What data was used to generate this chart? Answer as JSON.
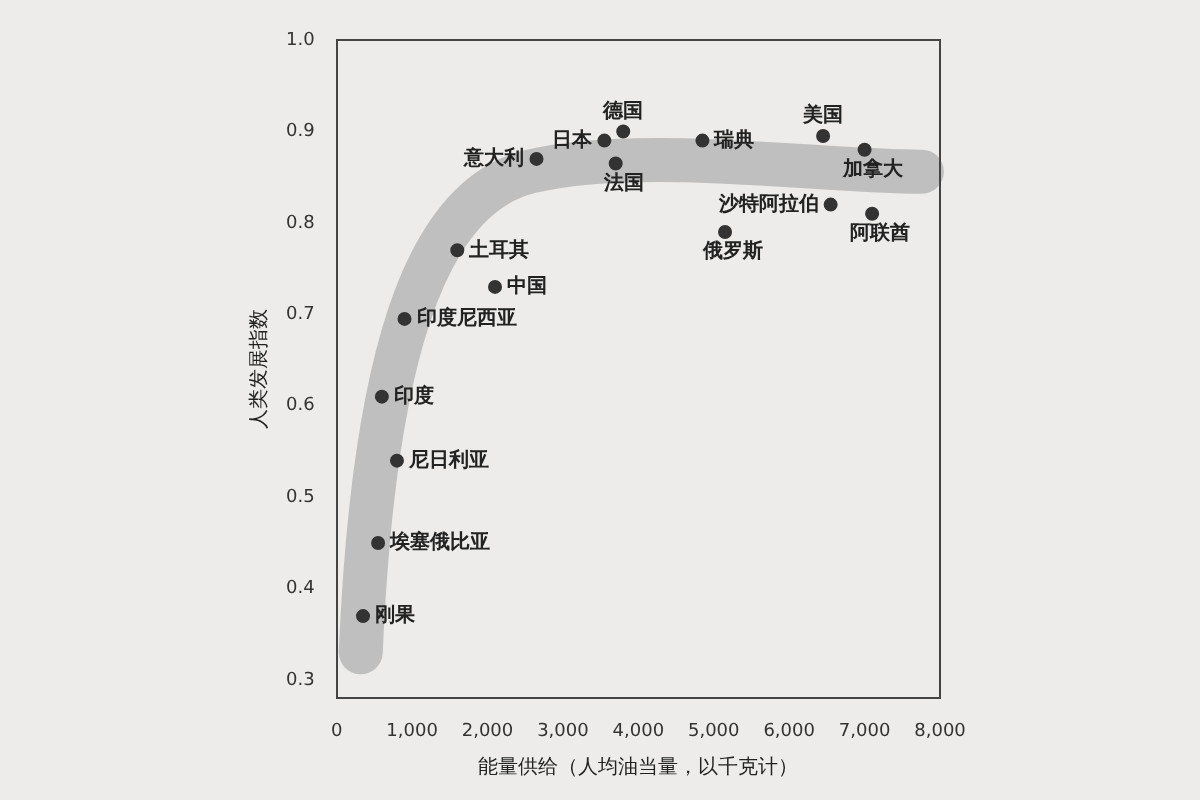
{
  "chart_data": {
    "type": "scatter",
    "xlabel": "能量供给（人均油当量，以千克计）",
    "ylabel": "人类发展指数",
    "x": [
      350,
      550,
      800,
      600,
      900,
      1600,
      2100,
      2650,
      3550,
      3800,
      3700,
      4850,
      6450,
      7000,
      6550,
      7100,
      5150
    ],
    "values": [
      0.37,
      0.45,
      0.54,
      0.61,
      0.695,
      0.77,
      0.73,
      0.87,
      0.89,
      0.9,
      0.865,
      0.89,
      0.895,
      0.88,
      0.82,
      0.81,
      0.79
    ],
    "color": "#333333",
    "marker": "circle",
    "grid": false,
    "xlim": [
      0,
      8000
    ],
    "xticks": [
      0,
      {
        "value": 1000,
        "label": "1,000"
      },
      {
        "value": 2000,
        "label": "2,000"
      },
      {
        "value": 3000,
        "label": "3,000"
      },
      {
        "value": 4000,
        "label": "4,000"
      },
      {
        "value": 5000,
        "label": "5,000"
      },
      {
        "value": 6000,
        "label": "6,000"
      },
      {
        "value": 7000,
        "label": "7,000"
      },
      {
        "value": 8000,
        "label": "8,000"
      }
    ],
    "ylim": [
      0.28,
      1.0
    ],
    "yticks": [
      0.3,
      0.4,
      0.5,
      0.6,
      0.7,
      0.8,
      0.9,
      {
        "value": 1.0,
        "label": "1.0"
      }
    ],
    "annotations": [
      {
        "text": "刚果",
        "x": 350,
        "y": 0.37
      },
      {
        "text": "埃塞俄比亚",
        "x": 550,
        "y": 0.45
      },
      {
        "text": "尼日利亚",
        "x": 800,
        "y": 0.54
      },
      {
        "text": "印度",
        "x": 600,
        "y": 0.61
      },
      {
        "text": "印度尼西亚",
        "x": 900,
        "y": 0.695
      },
      {
        "text": "土耳其",
        "x": 1600,
        "y": 0.77
      },
      {
        "text": "中国",
        "x": 2100,
        "y": 0.73
      },
      {
        "text": "意大利",
        "x": 2650,
        "y": 0.87
      },
      {
        "text": "日本",
        "x": 3550,
        "y": 0.89
      },
      {
        "text": "德国",
        "x": 3800,
        "y": 0.9
      },
      {
        "text": "法国",
        "x": 3700,
        "y": 0.865
      },
      {
        "text": "瑞典",
        "x": 4850,
        "y": 0.89
      },
      {
        "text": "美国",
        "x": 6450,
        "y": 0.895
      },
      {
        "text": "加拿大",
        "x": 7000,
        "y": 0.88
      },
      {
        "text": "沙特阿拉伯",
        "x": 6550,
        "y": 0.82
      },
      {
        "text": "阿联酋",
        "x": 7100,
        "y": 0.81
      },
      {
        "text": "俄罗斯",
        "x": 5150,
        "y": 0.79
      }
    ]
  }
}
